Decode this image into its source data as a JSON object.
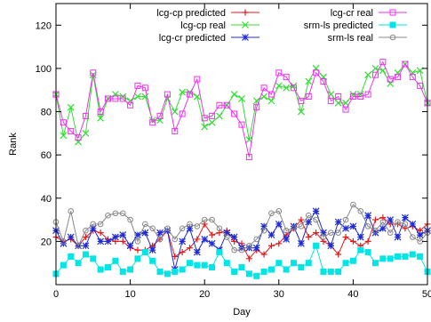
{
  "chart_data": {
    "type": "line",
    "title": "",
    "xlabel": "Day",
    "ylabel": "Rank",
    "xlim": [
      0,
      50
    ],
    "ylim": [
      0,
      130
    ],
    "xticks": [
      0,
      10,
      20,
      30,
      40,
      50
    ],
    "yticks": [
      20,
      40,
      60,
      80,
      100,
      120
    ],
    "legend_position": "top",
    "x": [
      0,
      1,
      2,
      3,
      4,
      5,
      6,
      7,
      8,
      9,
      10,
      11,
      12,
      13,
      14,
      15,
      16,
      17,
      18,
      19,
      20,
      21,
      22,
      23,
      24,
      25,
      26,
      27,
      28,
      29,
      30,
      31,
      32,
      33,
      34,
      35,
      36,
      37,
      38,
      39,
      40,
      41,
      42,
      43,
      44,
      45,
      46,
      47,
      48,
      49,
      50
    ],
    "series": [
      {
        "name": "lcg-cp predicted",
        "color": "#e41a1c",
        "marker": "plus",
        "values": [
          22,
          20,
          21,
          18,
          22,
          25,
          24,
          21,
          20,
          20,
          17,
          16,
          16,
          18,
          21,
          25,
          13,
          15,
          17,
          21,
          28,
          23,
          24,
          25,
          20,
          19,
          12,
          16,
          14,
          18,
          19,
          23,
          26,
          30,
          22,
          24,
          20,
          18,
          14,
          22,
          20,
          18,
          20,
          30,
          31,
          28,
          28,
          26,
          27,
          25,
          28
        ]
      },
      {
        "name": "lcg-cp real",
        "color": "#33dd33",
        "marker": "x",
        "values": [
          88,
          69,
          82,
          66,
          70,
          97,
          77,
          86,
          88,
          87,
          85,
          87,
          87,
          76,
          76,
          86,
          80,
          89,
          89,
          87,
          73,
          75,
          78,
          83,
          88,
          86,
          67,
          85,
          87,
          85,
          92,
          91,
          92,
          80,
          94,
          100,
          96,
          88,
          84,
          84,
          88,
          88,
          97,
          100,
          99,
          93,
          98,
          102,
          98,
          99,
          84
        ]
      },
      {
        "name": "lcg-cr predicted",
        "color": "#1f2bd6",
        "marker": "star",
        "values": [
          25,
          19,
          22,
          18,
          18,
          26,
          20,
          20,
          22,
          23,
          18,
          23,
          24,
          16,
          24,
          25,
          7,
          20,
          26,
          15,
          21,
          19,
          16,
          24,
          22,
          17,
          17,
          17,
          27,
          23,
          28,
          21,
          27,
          19,
          29,
          34,
          24,
          18,
          29,
          26,
          27,
          22,
          32,
          24,
          26,
          30,
          22,
          31,
          28,
          23,
          25
        ]
      },
      {
        "name": "lcg-cr real",
        "color": "#ee33ee",
        "marker": "square",
        "values": [
          88,
          75,
          71,
          68,
          78,
          98,
          80,
          86,
          86,
          86,
          83,
          92,
          91,
          75,
          78,
          88,
          71,
          79,
          88,
          95,
          77,
          78,
          83,
          83,
          79,
          74,
          59,
          82,
          91,
          88,
          98,
          96,
          91,
          85,
          87,
          98,
          94,
          85,
          87,
          81,
          87,
          87,
          88,
          97,
          103,
          95,
          96,
          102,
          96,
          92,
          84
        ]
      },
      {
        "name": "srm-ls predicted",
        "color": "#00e5e5",
        "marker": "filled-square",
        "values": [
          5,
          9,
          13,
          10,
          14,
          12,
          7,
          8,
          11,
          6,
          7,
          12,
          15,
          11,
          6,
          5,
          6,
          7,
          10,
          9,
          9,
          8,
          15,
          10,
          6,
          8,
          5,
          4,
          6,
          7,
          10,
          7,
          10,
          8,
          10,
          18,
          6,
          6,
          6,
          10,
          11,
          16,
          15,
          10,
          12,
          12,
          13,
          13,
          14,
          13,
          6
        ]
      },
      {
        "name": "srm-ls real",
        "color": "#888888",
        "marker": "circle",
        "values": [
          29,
          20,
          34,
          18,
          25,
          28,
          28,
          32,
          33,
          33,
          30,
          20,
          28,
          26,
          21,
          26,
          21,
          26,
          28,
          27,
          30,
          30,
          26,
          22,
          16,
          16,
          18,
          21,
          25,
          33,
          34,
          25,
          26,
          27,
          32,
          30,
          22,
          24,
          24,
          30,
          37,
          34,
          27,
          25,
          29,
          24,
          29,
          28,
          22,
          20,
          24
        ]
      }
    ]
  }
}
